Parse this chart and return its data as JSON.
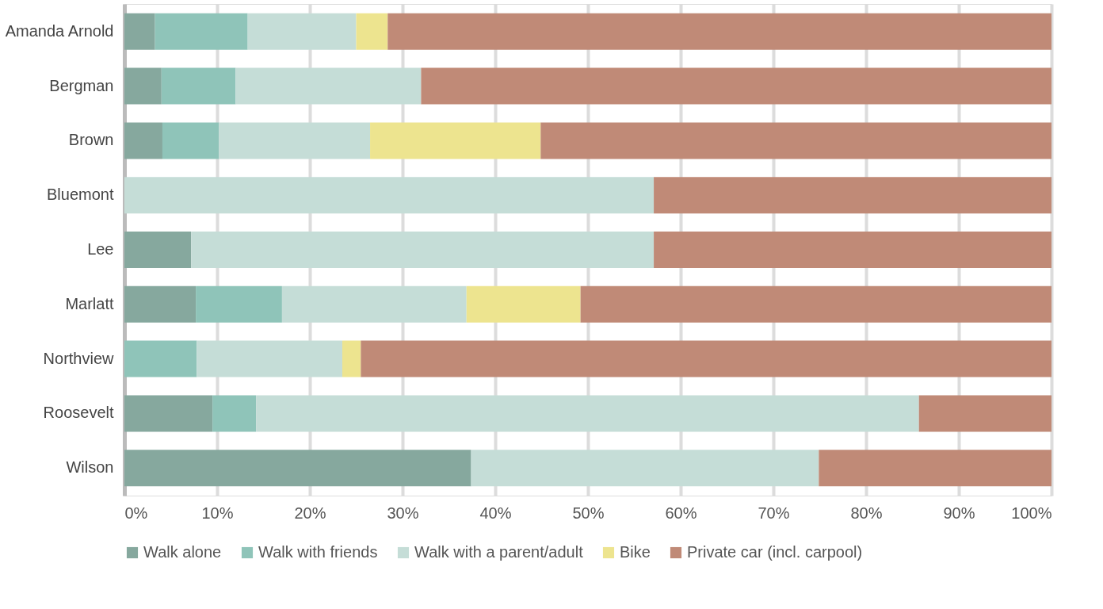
{
  "chart_data": {
    "type": "bar",
    "orientation": "horizontal",
    "stacked": true,
    "categories": [
      "Amanda Arnold",
      "Bergman",
      "Brown",
      "Bluemont",
      "Lee",
      "Marlatt",
      "Northview",
      "Roosevelt",
      "Wilson"
    ],
    "series": [
      {
        "name": "Walk alone",
        "color": "#86a89e",
        "values": [
          3.3,
          4.0,
          4.1,
          0,
          7.2,
          7.7,
          0,
          9.5,
          37.4
        ]
      },
      {
        "name": "Walk with friends",
        "color": "#8fc4b9",
        "values": [
          10.0,
          8.0,
          6.1,
          0,
          0,
          9.3,
          7.8,
          4.7,
          0
        ]
      },
      {
        "name": "Walk with a parent/adult",
        "color": "#c5ddd7",
        "values": [
          11.7,
          20.0,
          16.3,
          57.1,
          49.9,
          19.9,
          15.7,
          71.5,
          37.5
        ]
      },
      {
        "name": "Bike",
        "color": "#ede48f",
        "values": [
          3.4,
          0,
          18.4,
          0,
          0,
          12.3,
          2.0,
          0,
          0
        ]
      },
      {
        "name": "Private car (incl. carpool)",
        "color": "#c08a77",
        "values": [
          71.6,
          68.0,
          55.1,
          42.9,
          42.9,
          50.8,
          74.5,
          14.3,
          25.1
        ]
      }
    ],
    "xlim": [
      0,
      100
    ],
    "xticks": [
      {
        "value": 0,
        "label": "0%"
      },
      {
        "value": 10,
        "label": "10%"
      },
      {
        "value": 20,
        "label": "20%"
      },
      {
        "value": 30,
        "label": "30%"
      },
      {
        "value": 40,
        "label": "40%"
      },
      {
        "value": 50,
        "label": "50%"
      },
      {
        "value": 60,
        "label": "60%"
      },
      {
        "value": 70,
        "label": "70%"
      },
      {
        "value": 80,
        "label": "80%"
      },
      {
        "value": 90,
        "label": "90%"
      },
      {
        "value": 100,
        "label": "100%"
      }
    ],
    "grid": "x",
    "legend": "bottom"
  }
}
